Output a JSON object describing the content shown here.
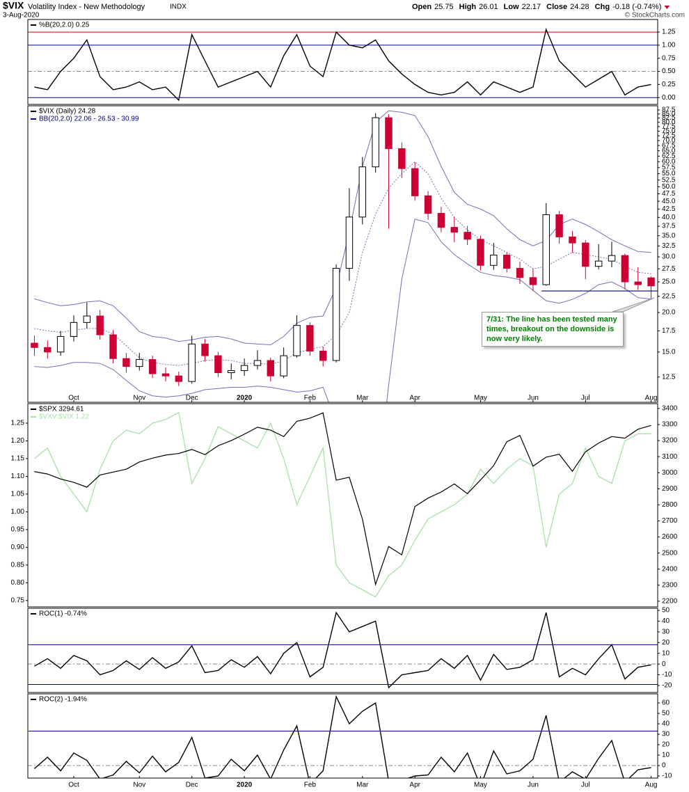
{
  "header": {
    "symbol": "$VIX",
    "name": "Volatility Index - New Methodology",
    "exchange": "INDX",
    "date": "3-Aug-2020",
    "quote": [
      {
        "label": "Open",
        "value": "25.75"
      },
      {
        "label": "High",
        "value": "26.01"
      },
      {
        "label": "Low",
        "value": "22.17"
      },
      {
        "label": "Close",
        "value": "24.28"
      },
      {
        "label": "Chg",
        "value": "-0.18 (-0.74%)"
      }
    ],
    "credit": "© StockCharts.com"
  },
  "chart_data": [
    {
      "type": "line",
      "title": "%B(20,2.0) 0.25",
      "color": "#000000",
      "values": [
        0.2,
        0.15,
        0.5,
        0.75,
        1.1,
        0.4,
        0.15,
        0.2,
        0.3,
        0.15,
        0.2,
        -0.05,
        1.2,
        0.7,
        0.2,
        0.3,
        0.4,
        0.5,
        0.2,
        0.8,
        1.2,
        0.6,
        0.4,
        1.25,
        1.0,
        0.95,
        1.1,
        0.7,
        0.45,
        0.25,
        0.1,
        0.05,
        0.1,
        0.3,
        0.05,
        0.3,
        0.2,
        0.1,
        0.2,
        1.3,
        0.7,
        0.45,
        0.2,
        0.35,
        0.5,
        0.05,
        0.2,
        0.25
      ],
      "ylim": [
        -0.13,
        1.49
      ],
      "yticks": [
        {
          "value": 0,
          "label": "0.00"
        },
        0.25,
        {
          "value": 0.5,
          "label": "0.50"
        },
        0.75,
        {
          "value": 1,
          "label": "1.00"
        },
        1.25
      ],
      "levels": [
        {
          "value": 1.25,
          "color": "#cc0000",
          "dash": false
        },
        {
          "value": 1,
          "color": "#000080",
          "dash": false
        },
        {
          "value": 0.5,
          "color": "#888888",
          "dash": true
        },
        {
          "value": 0,
          "color": "#000080",
          "dash": false
        }
      ]
    },
    {
      "type": "candlestick",
      "title": "$VIX (Daily) 24.28",
      "log_scale": true,
      "up_color": "#000000",
      "down_color": "#cc0033",
      "categories": [
        null,
        null,
        null,
        "Oct",
        null,
        null,
        null,
        null,
        "Nov",
        null,
        null,
        null,
        "Dec",
        null,
        null,
        null,
        "2020",
        null,
        null,
        null,
        null,
        "Feb",
        null,
        null,
        null,
        "Mar",
        null,
        null,
        null,
        "Apr",
        null,
        null,
        null,
        null,
        "May",
        null,
        null,
        null,
        "Jun",
        null,
        null,
        null,
        "Jul",
        null,
        null,
        null,
        null,
        "Aug"
      ],
      "open": [
        16.0,
        15.5,
        15.0,
        16.8,
        18.6,
        19.5,
        17.0,
        14.3,
        13.5,
        14.2,
        12.8,
        12.6,
        12.1,
        15.9,
        14.6,
        12.9,
        13.1,
        13.6,
        14.1,
        12.6,
        14.6,
        18.2,
        15.1,
        14.1,
        27.6,
        40.1,
        57.8,
        82.7,
        66.0,
        57.1,
        46.8,
        41.2,
        37.2,
        35.9,
        34.1,
        28.2,
        30.4,
        27.6,
        25.8,
        24.5,
        40.8,
        34.7,
        33.2,
        28.0,
        29.1,
        30.3,
        25.0,
        25.75
      ],
      "high": [
        16.9,
        16.3,
        17.5,
        19.6,
        21.5,
        20.4,
        17.6,
        14.9,
        14.9,
        14.6,
        13.4,
        13.0,
        16.9,
        16.5,
        15.0,
        13.8,
        14.3,
        15.2,
        14.4,
        15.5,
        19.6,
        18.6,
        15.6,
        28.4,
        49.5,
        62.1,
        85.5,
        84.8,
        69.0,
        59.7,
        48.4,
        43.2,
        40.2,
        37.6,
        35.0,
        33.2,
        31.0,
        29.0,
        27.6,
        44.4,
        41.9,
        36.2,
        33.9,
        32.9,
        33.5,
        30.7,
        27.8,
        26.01
      ],
      "low": [
        14.6,
        14.3,
        14.6,
        16.2,
        17.8,
        16.4,
        13.8,
        12.9,
        13.1,
        12.4,
        12.1,
        11.7,
        11.9,
        14.0,
        12.5,
        12.3,
        12.6,
        13.2,
        12.1,
        12.4,
        14.4,
        14.6,
        13.5,
        13.9,
        25.2,
        38.0,
        55.4,
        36.8,
        53.3,
        45.2,
        39.3,
        35.9,
        33.4,
        32.7,
        27.2,
        27.3,
        26.8,
        24.6,
        23.4,
        24.3,
        33.0,
        30.9,
        25.5,
        27.4,
        27.8,
        23.7,
        23.6,
        22.17
      ],
      "close": [
        15.5,
        15.0,
        16.8,
        18.6,
        19.5,
        17.0,
        14.3,
        13.5,
        14.2,
        12.8,
        12.6,
        12.1,
        15.9,
        14.6,
        12.9,
        13.1,
        13.6,
        14.1,
        12.6,
        14.6,
        18.2,
        15.1,
        14.1,
        27.6,
        40.1,
        57.8,
        82.7,
        66.0,
        57.1,
        46.8,
        41.2,
        37.2,
        35.9,
        34.1,
        28.2,
        30.4,
        27.6,
        25.8,
        24.5,
        40.8,
        34.7,
        33.2,
        28.0,
        29.1,
        30.3,
        25.0,
        24.5,
        24.28
      ],
      "bands": {
        "name": "BB(20,2.0) 22.06 - 26.53 - 30.99",
        "color": "#7070b8",
        "upper": [
          22.1,
          21.5,
          21.0,
          21.2,
          21.6,
          21.8,
          21.0,
          19.2,
          17.4,
          16.8,
          16.6,
          16.2,
          16.4,
          16.7,
          16.8,
          16.5,
          16.0,
          15.9,
          15.8,
          16.8,
          18.5,
          19.3,
          19.5,
          24.0,
          36.0,
          58.0,
          80.0,
          87.0,
          86.0,
          84.0,
          72.0,
          58.0,
          48.0,
          44.0,
          42.5,
          40.5,
          36.8,
          34.0,
          32.5,
          33.8,
          38.0,
          39.5,
          38.0,
          36.0,
          34.0,
          32.5,
          31.2,
          30.99
        ],
        "middle": [
          17.8,
          17.5,
          17.3,
          17.6,
          17.8,
          17.8,
          17.1,
          15.7,
          14.4,
          13.9,
          13.7,
          13.6,
          13.8,
          14.1,
          14.2,
          14.1,
          13.8,
          13.8,
          13.7,
          14.1,
          14.9,
          15.3,
          15.6,
          17.0,
          20.0,
          31.0,
          41.0,
          49.5,
          55.0,
          60.0,
          55.0,
          46.0,
          40.0,
          36.5,
          34.0,
          32.5,
          31.0,
          29.5,
          27.5,
          28.0,
          29.5,
          31.0,
          30.5,
          30.0,
          29.5,
          28.0,
          26.8,
          26.53
        ],
        "lower": [
          13.5,
          13.4,
          13.6,
          13.9,
          13.9,
          13.8,
          13.2,
          12.2,
          11.3,
          10.9,
          10.8,
          10.9,
          11.1,
          11.4,
          11.5,
          11.6,
          11.6,
          11.7,
          11.6,
          11.4,
          11.2,
          11.3,
          11.6,
          9.0,
          3.5,
          2.0,
          5.0,
          11.8,
          25.5,
          39.5,
          38.5,
          33.5,
          30.5,
          28.5,
          26.8,
          26.2,
          25.9,
          25.4,
          23.5,
          21.8,
          21.4,
          22.0,
          23.0,
          24.5,
          25.0,
          23.8,
          22.3,
          22.06
        ]
      },
      "support_line": 23.4,
      "support_color": "#000080",
      "annotation": "7/31: The line has been tested many times, breakout on the downside is now very likely.",
      "ylim": [
        10.4,
        90.2
      ],
      "yticks": [
        12.5,
        {
          "value": 15,
          "label": "15.0"
        },
        17.5,
        {
          "value": 20,
          "label": "20.0"
        },
        22.5,
        {
          "value": 25,
          "label": "25.0"
        },
        27.5,
        {
          "value": 30,
          "label": "30.0"
        },
        32.5,
        {
          "value": 35,
          "label": "35.0"
        },
        37.5,
        {
          "value": 40,
          "label": "40.0"
        },
        42.5,
        {
          "value": 45,
          "label": "45.0"
        },
        47.5,
        {
          "value": 50,
          "label": "50.0"
        },
        52.5,
        {
          "value": 55,
          "label": "55.0"
        },
        57.5,
        {
          "value": 60,
          "label": "60.0"
        },
        62.5,
        {
          "value": 65,
          "label": "65.0"
        },
        67.5,
        {
          "value": 70,
          "label": "70.0"
        },
        72.5,
        {
          "value": 75,
          "label": "75.0"
        },
        77.5,
        {
          "value": 80,
          "label": "80.0"
        },
        82.5,
        {
          "value": 85,
          "label": "85.0"
        },
        87.5
      ]
    },
    {
      "type": "line",
      "series": [
        {
          "name": "$SPX 3294.61",
          "color": "#000000",
          "values": [
            3007,
            2992,
            2961,
            2940,
            2910,
            2986,
            3004,
            3022,
            3067,
            3091,
            3110,
            3120,
            3145,
            3113,
            3168,
            3200,
            3240,
            3283,
            3265,
            3225,
            3320,
            3340,
            3373,
            2954,
            2972,
            2711,
            2305,
            2541,
            2489,
            2790,
            2842,
            2880,
            2930,
            2870,
            2955,
            3044,
            3193,
            3232,
            3041,
            3097,
            3115,
            3009,
            3130,
            3185,
            3225,
            3215,
            3271,
            3294.61
          ]
        },
        {
          "name": "$VXV:$VIX 1.22",
          "color": "#a8e0a8",
          "axis": "y2",
          "values": [
            1.15,
            1.18,
            1.1,
            1.05,
            1.0,
            1.12,
            1.2,
            1.23,
            1.22,
            1.25,
            1.26,
            1.28,
            1.08,
            1.15,
            1.24,
            1.22,
            1.2,
            1.18,
            1.25,
            1.15,
            1.02,
            1.1,
            1.18,
            0.85,
            0.8,
            0.78,
            0.76,
            0.82,
            0.85,
            0.92,
            0.98,
            1.0,
            1.02,
            1.05,
            1.12,
            1.08,
            1.12,
            1.15,
            1.13,
            0.9,
            1.05,
            1.08,
            1.18,
            1.1,
            1.08,
            1.2,
            1.22,
            1.22
          ]
        }
      ],
      "ylim": [
        2165,
        3430
      ],
      "yticks": [
        2200,
        2300,
        2400,
        2500,
        2600,
        2700,
        2800,
        2900,
        3000,
        3100,
        3200,
        3300,
        3400
      ],
      "y2lim": [
        0.732,
        1.305
      ],
      "y2ticks": [
        0.75,
        {
          "value": 0.8,
          "label": "0.80"
        },
        0.85,
        {
          "value": 0.9,
          "label": "0.90"
        },
        0.95,
        {
          "value": 1,
          "label": "1.00"
        },
        1.05,
        {
          "value": 1.1,
          "label": "1.10"
        },
        1.15,
        {
          "value": 1.2,
          "label": "1.20"
        },
        1.25
      ]
    },
    {
      "type": "line",
      "title": "ROC(1) -0.74%",
      "color": "#000000",
      "values": [
        -2,
        5,
        -4,
        8,
        3,
        -10,
        -6,
        3,
        -5,
        6,
        -4,
        2,
        17,
        -8,
        -6,
        4,
        -3,
        7,
        -9,
        10,
        20,
        -12,
        -3,
        48,
        30,
        35,
        40,
        -22,
        -10,
        -8,
        -6,
        5,
        -4,
        8,
        -15,
        9,
        -5,
        -3,
        4,
        48,
        -12,
        -4,
        -10,
        5,
        18,
        -14,
        -3,
        -0.74
      ],
      "ylim": [
        -26.5,
        52
      ],
      "yticks": [
        -20,
        -10,
        0,
        10,
        20,
        30,
        40,
        50
      ],
      "levels": [
        {
          "value": 18,
          "color": "#000080",
          "dash": false
        },
        {
          "value": 0,
          "color": "#888888",
          "dash": true
        },
        {
          "value": -19,
          "color": "#000080",
          "dash": false
        }
      ]
    },
    {
      "type": "line",
      "title": "ROC(2) -1.94%",
      "color": "#000000",
      "categories": [
        null,
        null,
        null,
        "Oct",
        null,
        null,
        null,
        null,
        "Nov",
        null,
        null,
        null,
        "Dec",
        null,
        null,
        null,
        "2020",
        null,
        null,
        null,
        null,
        "Feb",
        null,
        null,
        null,
        "Mar",
        null,
        null,
        null,
        "Apr",
        null,
        null,
        null,
        null,
        "May",
        null,
        null,
        null,
        "Jun",
        null,
        null,
        null,
        "Jul",
        null,
        null,
        null,
        null,
        "Aug"
      ],
      "values": [
        -3,
        8,
        -5,
        12,
        5,
        -13,
        -9,
        4,
        -7,
        9,
        -6,
        3,
        27,
        -12,
        -10,
        6,
        -5,
        10,
        -13,
        15,
        38,
        -18,
        -5,
        66,
        40,
        52,
        60,
        -15,
        -14,
        -10,
        -9,
        8,
        -6,
        12,
        -20,
        14,
        -8,
        -5,
        6,
        48,
        -16,
        -6,
        -13,
        7,
        24,
        -16,
        -4,
        -1.94
      ],
      "ylim": [
        -12,
        68.7
      ],
      "yticks": [
        -10,
        0,
        10,
        20,
        30,
        40,
        50,
        60
      ],
      "levels": [
        {
          "value": 33,
          "color": "#000080",
          "dash": false
        },
        {
          "value": 0,
          "color": "#888888",
          "dash": true
        }
      ]
    }
  ]
}
